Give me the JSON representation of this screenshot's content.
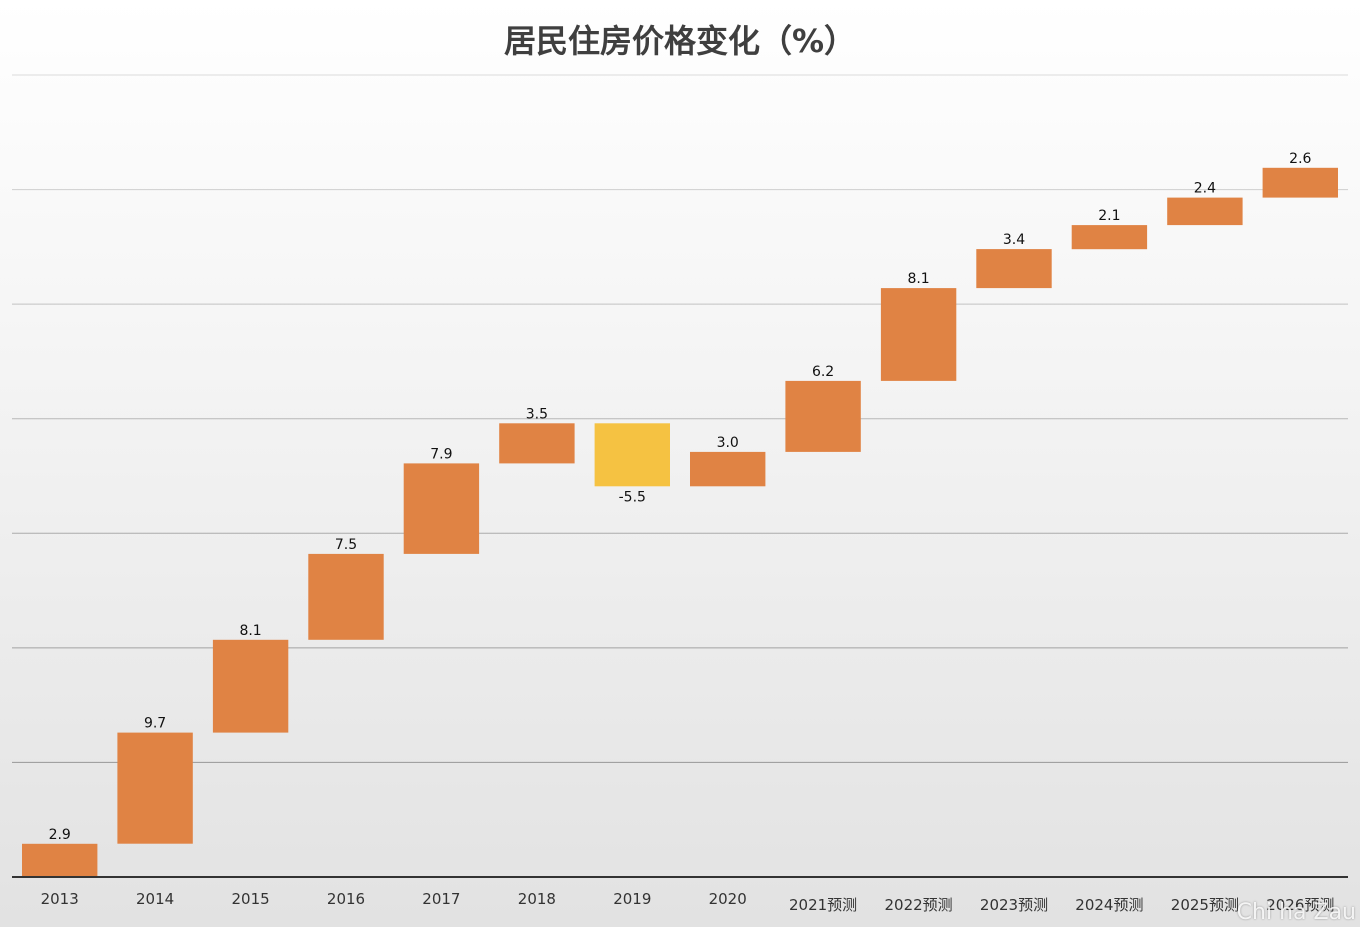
{
  "chart_data": {
    "type": "waterfall",
    "title": "居民住房价格变化（%）",
    "xlabel": "",
    "ylabel": "",
    "categories": [
      "2013",
      "2014",
      "2015",
      "2016",
      "2017",
      "2018",
      "2019",
      "2020",
      "2021预测",
      "2022预测",
      "2023预测",
      "2024预测",
      "2025预测",
      "2026预测"
    ],
    "values": [
      2.9,
      9.7,
      8.1,
      7.5,
      7.9,
      3.5,
      -5.5,
      3.0,
      6.2,
      8.1,
      3.4,
      2.1,
      2.4,
      2.6
    ],
    "value_labels": [
      "2.9",
      "9.7",
      "8.1",
      "7.5",
      "7.9",
      "3.5",
      "-5.5",
      "3.0",
      "6.2",
      "8.1",
      "3.4",
      "2.1",
      "2.4",
      "2.6"
    ],
    "ylim": [
      0,
      70
    ],
    "grid": true,
    "colors": {
      "increase": "#e08344",
      "decrease": "#f5c242"
    }
  },
  "watermark": "Chi ha Zau"
}
